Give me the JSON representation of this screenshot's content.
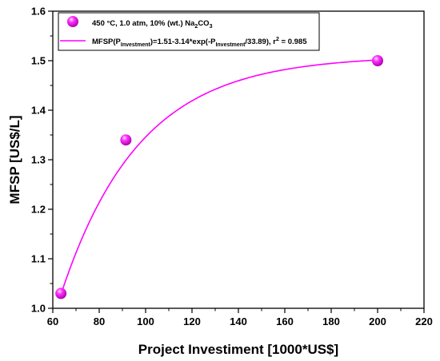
{
  "chart_data": {
    "type": "scatter",
    "xlabel": "Project Investiment [1000*US$]",
    "ylabel": "MFSP [US$/L]",
    "xlim": [
      60,
      220
    ],
    "ylim": [
      1.0,
      1.6
    ],
    "x_ticks": [
      60,
      80,
      100,
      120,
      140,
      160,
      180,
      200,
      220
    ],
    "y_ticks": [
      1.0,
      1.1,
      1.2,
      1.3,
      1.4,
      1.5,
      1.6
    ],
    "x_tick_labels": [
      "60",
      "80",
      "100",
      "120",
      "140",
      "160",
      "180",
      "200",
      "220"
    ],
    "y_tick_labels": [
      "1.0",
      "1.1",
      "1.2",
      "1.3",
      "1.4",
      "1.5",
      "1.6"
    ],
    "grid": false,
    "legend_position": "top-left",
    "series": [
      {
        "kind": "scatter",
        "name_parts": [
          "450 °C, 1.0 atm, 10% (wt.) Na",
          "2",
          "CO",
          "3"
        ],
        "color": "#ff00ff",
        "x": [
          63.5,
          91.5,
          200
        ],
        "y": [
          1.03,
          1.34,
          1.5
        ]
      },
      {
        "kind": "fit",
        "name_parts": [
          "MFSP(P",
          "Investment",
          ")=1.51-3.14*exp(-P",
          "Investment",
          "/33.89), r",
          "2",
          " = 0.985"
        ],
        "color": "#ff00ff",
        "x_range": [
          63.5,
          200
        ],
        "coefficients": {
          "a": 1.51,
          "b": 3.14,
          "c": 33.89
        }
      }
    ]
  }
}
